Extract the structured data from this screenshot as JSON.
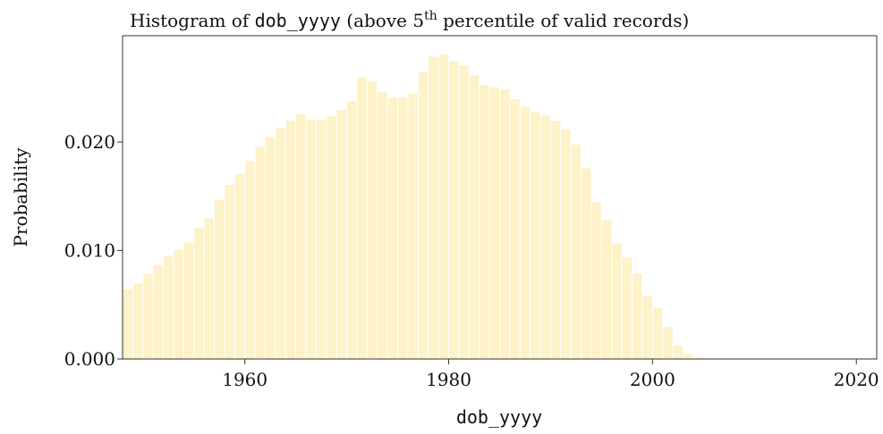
{
  "chart_data": {
    "type": "histogram",
    "title_parts": [
      "Histogram of ",
      "dob_yyyy",
      " (above 5",
      "th",
      " percentile of valid records)"
    ],
    "xlabel": "dob_yyyy",
    "ylabel": "Probability",
    "color": "#fdf2c8",
    "bins": [
      1948,
      1949,
      1950,
      1951,
      1952,
      1953,
      1954,
      1955,
      1956,
      1957,
      1958,
      1959,
      1960,
      1961,
      1962,
      1963,
      1964,
      1965,
      1966,
      1967,
      1968,
      1969,
      1970,
      1971,
      1972,
      1973,
      1974,
      1975,
      1976,
      1977,
      1978,
      1979,
      1980,
      1981,
      1982,
      1983,
      1984,
      1985,
      1986,
      1987,
      1988,
      1989,
      1990,
      1991,
      1992,
      1993,
      1994,
      1995,
      1996,
      1997,
      1998,
      1999,
      2000,
      2001,
      2002,
      2003,
      2004,
      2005,
      2006,
      2007,
      2008,
      2009,
      2010,
      2011,
      2012,
      2013,
      2014,
      2015,
      2016,
      2017,
      2018,
      2019,
      2020,
      2021,
      2022
    ],
    "values": [
      0.0065,
      0.007,
      0.0079,
      0.0087,
      0.0095,
      0.0101,
      0.0108,
      0.0121,
      0.013,
      0.0147,
      0.0161,
      0.0171,
      0.0183,
      0.0196,
      0.0205,
      0.0213,
      0.022,
      0.0226,
      0.0221,
      0.0221,
      0.0224,
      0.023,
      0.0238,
      0.026,
      0.0256,
      0.0246,
      0.0241,
      0.0241,
      0.0245,
      0.0265,
      0.0279,
      0.0281,
      0.0275,
      0.0271,
      0.0262,
      0.0253,
      0.0251,
      0.0249,
      0.024,
      0.0233,
      0.0228,
      0.0225,
      0.022,
      0.0212,
      0.0198,
      0.0176,
      0.0145,
      0.0128,
      0.0107,
      0.0094,
      0.0079,
      0.0059,
      0.0047,
      0.003,
      0.0013,
      0.0005,
      0.0002,
      0.0001,
      0,
      0,
      0,
      0,
      0,
      0,
      0,
      0,
      0,
      0,
      0,
      0,
      0,
      0,
      0,
      0
    ],
    "xlim": [
      1948,
      2022
    ],
    "ylim": [
      0,
      0.0298
    ],
    "xticks": [
      1960,
      1980,
      2000,
      2020
    ],
    "yticks": [
      {
        "value": 0,
        "label": "0.000"
      },
      {
        "value": 0.01,
        "label": "0.010"
      },
      {
        "value": 0.02,
        "label": "0.020"
      }
    ]
  }
}
